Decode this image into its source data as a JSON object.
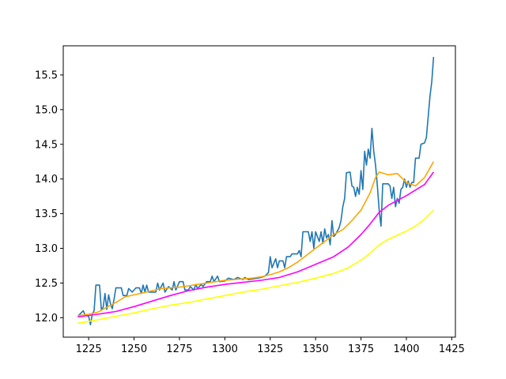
{
  "chart_data": {
    "type": "line",
    "title": "",
    "xlabel": "",
    "ylabel": "",
    "xlim": [
      1211,
      1427
    ],
    "ylim": [
      11.72,
      15.92
    ],
    "grid": false,
    "xticks": [
      1225,
      1250,
      1275,
      1300,
      1325,
      1350,
      1375,
      1400,
      1425
    ],
    "yticks": [
      12.0,
      12.5,
      13.0,
      13.5,
      14.0,
      14.5,
      15.0,
      15.5
    ],
    "series": [
      {
        "color": "#1f77b4",
        "points": [
          [
            1219,
            12.02
          ],
          [
            1222,
            12.1
          ],
          [
            1223,
            12.04
          ],
          [
            1225,
            12.02
          ],
          [
            1226,
            11.9
          ],
          [
            1227,
            12.05
          ],
          [
            1228,
            12.1
          ],
          [
            1229,
            12.47
          ],
          [
            1231,
            12.47
          ],
          [
            1232,
            12.12
          ],
          [
            1233,
            12.15
          ],
          [
            1234,
            12.35
          ],
          [
            1235,
            12.12
          ],
          [
            1236,
            12.33
          ],
          [
            1237,
            12.2
          ],
          [
            1238,
            12.13
          ],
          [
            1239,
            12.27
          ],
          [
            1240,
            12.43
          ],
          [
            1243,
            12.43
          ],
          [
            1244,
            12.32
          ],
          [
            1246,
            12.32
          ],
          [
            1247,
            12.42
          ],
          [
            1249,
            12.37
          ],
          [
            1251,
            12.43
          ],
          [
            1253,
            12.43
          ],
          [
            1254,
            12.35
          ],
          [
            1255,
            12.47
          ],
          [
            1256,
            12.37
          ],
          [
            1257,
            12.47
          ],
          [
            1258,
            12.37
          ],
          [
            1262,
            12.37
          ],
          [
            1263,
            12.5
          ],
          [
            1264,
            12.4
          ],
          [
            1266,
            12.5
          ],
          [
            1267,
            12.37
          ],
          [
            1269,
            12.45
          ],
          [
            1271,
            12.4
          ],
          [
            1272,
            12.52
          ],
          [
            1273,
            12.4
          ],
          [
            1275,
            12.52
          ],
          [
            1277,
            12.52
          ],
          [
            1278,
            12.4
          ],
          [
            1280,
            12.4
          ],
          [
            1281,
            12.45
          ],
          [
            1283,
            12.4
          ],
          [
            1284,
            12.48
          ],
          [
            1285,
            12.42
          ],
          [
            1287,
            12.48
          ],
          [
            1288,
            12.45
          ],
          [
            1290,
            12.52
          ],
          [
            1292,
            12.52
          ],
          [
            1293,
            12.6
          ],
          [
            1294,
            12.52
          ],
          [
            1296,
            12.6
          ],
          [
            1297,
            12.52
          ],
          [
            1300,
            12.53
          ],
          [
            1302,
            12.57
          ],
          [
            1305,
            12.55
          ],
          [
            1307,
            12.58
          ],
          [
            1310,
            12.55
          ],
          [
            1311,
            12.58
          ],
          [
            1313,
            12.55
          ],
          [
            1318,
            12.57
          ],
          [
            1320,
            12.58
          ],
          [
            1322,
            12.6
          ],
          [
            1324,
            12.65
          ],
          [
            1325,
            12.88
          ],
          [
            1326,
            12.72
          ],
          [
            1328,
            12.85
          ],
          [
            1329,
            12.72
          ],
          [
            1330,
            12.82
          ],
          [
            1332,
            12.82
          ],
          [
            1333,
            12.72
          ],
          [
            1334,
            12.88
          ],
          [
            1336,
            12.88
          ],
          [
            1337,
            12.92
          ],
          [
            1340,
            12.92
          ],
          [
            1341,
            12.97
          ],
          [
            1342,
            12.88
          ],
          [
            1343,
            13.24
          ],
          [
            1346,
            13.24
          ],
          [
            1347,
            13.1
          ],
          [
            1348,
            13.24
          ],
          [
            1349,
            13.0
          ],
          [
            1350,
            13.24
          ],
          [
            1352,
            13.1
          ],
          [
            1353,
            13.24
          ],
          [
            1354,
            13.07
          ],
          [
            1355,
            13.28
          ],
          [
            1356,
            13.15
          ],
          [
            1357,
            13.2
          ],
          [
            1358,
            13.05
          ],
          [
            1359,
            13.4
          ],
          [
            1360,
            13.17
          ],
          [
            1361,
            13.2
          ],
          [
            1362,
            13.25
          ],
          [
            1363,
            13.3
          ],
          [
            1364,
            13.4
          ],
          [
            1365,
            13.6
          ],
          [
            1366,
            13.72
          ],
          [
            1367,
            14.09
          ],
          [
            1369,
            14.1
          ],
          [
            1370,
            13.9
          ],
          [
            1371,
            13.88
          ],
          [
            1372,
            13.75
          ],
          [
            1373,
            13.88
          ],
          [
            1374,
            13.78
          ],
          [
            1375,
            14.12
          ],
          [
            1376,
            13.85
          ],
          [
            1377,
            14.4
          ],
          [
            1378,
            14.2
          ],
          [
            1379,
            14.43
          ],
          [
            1380,
            14.3
          ],
          [
            1381,
            14.73
          ],
          [
            1382,
            14.4
          ],
          [
            1383,
            14.2
          ],
          [
            1384,
            13.9
          ],
          [
            1385,
            13.55
          ],
          [
            1386,
            13.32
          ],
          [
            1387,
            13.93
          ],
          [
            1390,
            13.93
          ],
          [
            1391,
            13.9
          ],
          [
            1392,
            13.72
          ],
          [
            1393,
            13.88
          ],
          [
            1394,
            13.6
          ],
          [
            1395,
            13.72
          ],
          [
            1396,
            13.65
          ],
          [
            1397,
            13.85
          ],
          [
            1398,
            13.88
          ],
          [
            1399,
            14.0
          ],
          [
            1400,
            13.88
          ],
          [
            1401,
            13.97
          ],
          [
            1402,
            13.88
          ],
          [
            1403,
            13.95
          ],
          [
            1404,
            13.95
          ],
          [
            1405,
            14.3
          ],
          [
            1407,
            14.3
          ],
          [
            1408,
            14.5
          ],
          [
            1410,
            14.52
          ],
          [
            1411,
            14.6
          ],
          [
            1412,
            14.9
          ],
          [
            1413,
            15.2
          ],
          [
            1414,
            15.4
          ],
          [
            1415,
            15.76
          ]
        ]
      },
      {
        "color": "#ffa500",
        "points": [
          [
            1219,
            12.03
          ],
          [
            1225,
            12.05
          ],
          [
            1230,
            12.08
          ],
          [
            1235,
            12.15
          ],
          [
            1240,
            12.22
          ],
          [
            1245,
            12.3
          ],
          [
            1250,
            12.33
          ],
          [
            1255,
            12.36
          ],
          [
            1260,
            12.39
          ],
          [
            1265,
            12.42
          ],
          [
            1270,
            12.43
          ],
          [
            1275,
            12.44
          ],
          [
            1280,
            12.46
          ],
          [
            1285,
            12.48
          ],
          [
            1290,
            12.5
          ],
          [
            1295,
            12.52
          ],
          [
            1300,
            12.54
          ],
          [
            1305,
            12.55
          ],
          [
            1310,
            12.56
          ],
          [
            1315,
            12.57
          ],
          [
            1320,
            12.59
          ],
          [
            1325,
            12.62
          ],
          [
            1330,
            12.66
          ],
          [
            1335,
            12.72
          ],
          [
            1340,
            12.8
          ],
          [
            1345,
            12.9
          ],
          [
            1350,
            13.0
          ],
          [
            1355,
            13.1
          ],
          [
            1360,
            13.2
          ],
          [
            1365,
            13.27
          ],
          [
            1370,
            13.4
          ],
          [
            1375,
            13.55
          ],
          [
            1380,
            13.8
          ],
          [
            1383,
            14.02
          ],
          [
            1385,
            14.1
          ],
          [
            1390,
            14.06
          ],
          [
            1395,
            14.08
          ],
          [
            1400,
            13.95
          ],
          [
            1405,
            13.9
          ],
          [
            1410,
            14.02
          ],
          [
            1415,
            14.25
          ]
        ]
      },
      {
        "color": "#ff00ff",
        "points": [
          [
            1219,
            12.01
          ],
          [
            1230,
            12.05
          ],
          [
            1240,
            12.09
          ],
          [
            1250,
            12.16
          ],
          [
            1260,
            12.24
          ],
          [
            1270,
            12.32
          ],
          [
            1280,
            12.39
          ],
          [
            1290,
            12.44
          ],
          [
            1300,
            12.48
          ],
          [
            1310,
            12.51
          ],
          [
            1320,
            12.54
          ],
          [
            1330,
            12.58
          ],
          [
            1340,
            12.66
          ],
          [
            1350,
            12.77
          ],
          [
            1360,
            12.88
          ],
          [
            1368,
            13.02
          ],
          [
            1375,
            13.2
          ],
          [
            1380,
            13.35
          ],
          [
            1385,
            13.52
          ],
          [
            1390,
            13.62
          ],
          [
            1395,
            13.69
          ],
          [
            1400,
            13.76
          ],
          [
            1405,
            13.84
          ],
          [
            1410,
            13.92
          ],
          [
            1415,
            14.1
          ]
        ]
      },
      {
        "color": "#ffff00",
        "points": [
          [
            1219,
            11.92
          ],
          [
            1230,
            11.97
          ],
          [
            1240,
            12.02
          ],
          [
            1250,
            12.07
          ],
          [
            1260,
            12.13
          ],
          [
            1270,
            12.18
          ],
          [
            1280,
            12.22
          ],
          [
            1290,
            12.27
          ],
          [
            1300,
            12.32
          ],
          [
            1310,
            12.37
          ],
          [
            1320,
            12.41
          ],
          [
            1330,
            12.46
          ],
          [
            1340,
            12.51
          ],
          [
            1350,
            12.57
          ],
          [
            1360,
            12.64
          ],
          [
            1368,
            12.72
          ],
          [
            1375,
            12.83
          ],
          [
            1380,
            12.93
          ],
          [
            1385,
            13.05
          ],
          [
            1390,
            13.13
          ],
          [
            1395,
            13.19
          ],
          [
            1400,
            13.25
          ],
          [
            1405,
            13.32
          ],
          [
            1410,
            13.42
          ],
          [
            1415,
            13.55
          ]
        ]
      }
    ]
  }
}
